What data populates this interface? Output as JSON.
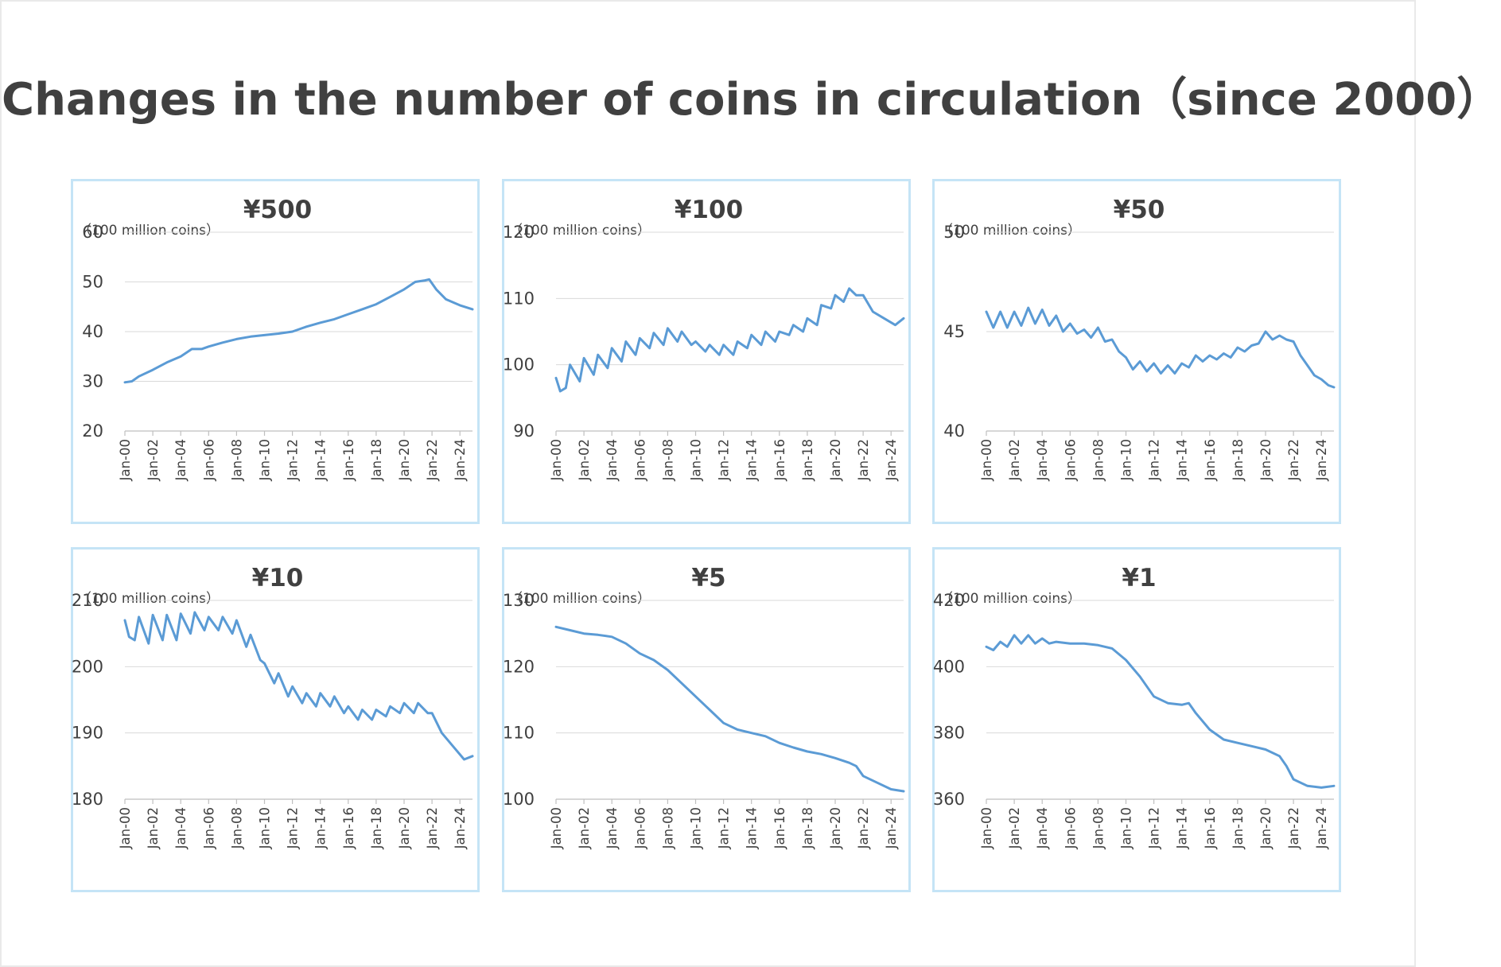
{
  "title": "Changes in the number of coins in circulation（since 2000）",
  "series_color": "#5b9bd5",
  "panel_border_color": "#c5e4f6",
  "chart_data": [
    {
      "type": "line",
      "title": "¥500",
      "ylabel": "（100 million coins）",
      "ylim": [
        20,
        60
      ],
      "yticks": [
        20,
        30,
        40,
        50,
        60
      ],
      "xlim": [
        2000,
        2024.9
      ],
      "xticks": [
        "Jan-00",
        "Jan-02",
        "Jan-04",
        "Jan-06",
        "Jan-08",
        "Jan-10",
        "Jan-12",
        "Jan-14",
        "Jan-16",
        "Jan-18",
        "Jan-20",
        "Jan-22",
        "Jan-24"
      ],
      "x": [
        2000,
        2000.5,
        2001,
        2002,
        2003,
        2004,
        2004.8,
        2005.5,
        2006,
        2007,
        2008,
        2009,
        2010,
        2011,
        2012,
        2013,
        2014,
        2015,
        2016,
        2017,
        2018,
        2019,
        2020,
        2020.8,
        2021.5,
        2021.8,
        2022.3,
        2023,
        2024,
        2024.9
      ],
      "y": [
        29.8,
        30.0,
        31.0,
        32.3,
        33.8,
        35.0,
        36.5,
        36.5,
        37.0,
        37.8,
        38.5,
        39.0,
        39.3,
        39.6,
        40.0,
        41.0,
        41.8,
        42.5,
        43.5,
        44.5,
        45.5,
        47.0,
        48.5,
        50.0,
        50.3,
        50.5,
        48.5,
        46.5,
        45.3,
        44.5
      ]
    },
    {
      "type": "line",
      "title": "¥100",
      "ylabel": "（100 million coins）",
      "ylim": [
        90,
        120
      ],
      "yticks": [
        90,
        100,
        110,
        120
      ],
      "xlim": [
        2000,
        2024.9
      ],
      "xticks": [
        "Jan-00",
        "Jan-02",
        "Jan-04",
        "Jan-06",
        "Jan-08",
        "Jan-10",
        "Jan-12",
        "Jan-14",
        "Jan-16",
        "Jan-18",
        "Jan-20",
        "Jan-22",
        "Jan-24"
      ],
      "x": [
        2000,
        2000.3,
        2000.7,
        2001,
        2001.7,
        2002,
        2002.7,
        2003,
        2003.7,
        2004,
        2004.7,
        2005,
        2005.7,
        2006,
        2006.7,
        2007,
        2007.7,
        2008,
        2008.7,
        2009,
        2009.7,
        2010,
        2010.7,
        2011,
        2011.7,
        2012,
        2012.7,
        2013,
        2013.7,
        2014,
        2014.7,
        2015,
        2015.7,
        2016,
        2016.7,
        2017,
        2017.7,
        2018,
        2018.7,
        2019,
        2019.7,
        2020,
        2020.6,
        2021,
        2021.5,
        2022,
        2022.7,
        2023.5,
        2024.3,
        2024.9
      ],
      "y": [
        98.0,
        96.0,
        96.5,
        100.0,
        97.5,
        101.0,
        98.5,
        101.5,
        99.5,
        102.5,
        100.5,
        103.5,
        101.5,
        104.0,
        102.5,
        104.8,
        103.0,
        105.5,
        103.5,
        105.0,
        103.0,
        103.5,
        102.0,
        103.0,
        101.5,
        103.0,
        101.5,
        103.5,
        102.5,
        104.5,
        103.0,
        105.0,
        103.5,
        105.0,
        104.5,
        106.0,
        105.0,
        107.0,
        106.0,
        109.0,
        108.5,
        110.5,
        109.5,
        111.5,
        110.5,
        110.5,
        108.0,
        107.0,
        106.0,
        107.0
      ]
    },
    {
      "type": "line",
      "title": "¥50",
      "ylabel": "（100 million coins）",
      "ylim": [
        40,
        50
      ],
      "yticks": [
        40,
        45,
        50
      ],
      "xlim": [
        2000,
        2024.9
      ],
      "xticks": [
        "Jan-00",
        "Jan-02",
        "Jan-04",
        "Jan-06",
        "Jan-08",
        "Jan-10",
        "Jan-12",
        "Jan-14",
        "Jan-16",
        "Jan-18",
        "Jan-20",
        "Jan-22",
        "Jan-24"
      ],
      "x": [
        2000,
        2000.5,
        2001,
        2001.5,
        2002,
        2002.5,
        2003,
        2003.5,
        2004,
        2004.5,
        2005,
        2005.5,
        2006,
        2006.5,
        2007,
        2007.5,
        2008,
        2008.5,
        2009,
        2009.5,
        2010,
        2010.5,
        2011,
        2011.5,
        2012,
        2012.5,
        2013,
        2013.5,
        2014,
        2014.5,
        2015,
        2015.5,
        2016,
        2016.5,
        2017,
        2017.5,
        2018,
        2018.5,
        2019,
        2019.5,
        2020,
        2020.5,
        2021,
        2021.5,
        2022,
        2022.5,
        2023,
        2023.5,
        2024,
        2024.5,
        2024.9
      ],
      "y": [
        46.0,
        45.2,
        46.0,
        45.2,
        46.0,
        45.3,
        46.2,
        45.4,
        46.1,
        45.3,
        45.8,
        45.0,
        45.4,
        44.9,
        45.1,
        44.7,
        45.2,
        44.5,
        44.6,
        44.0,
        43.7,
        43.1,
        43.5,
        43.0,
        43.4,
        42.9,
        43.3,
        42.9,
        43.4,
        43.2,
        43.8,
        43.5,
        43.8,
        43.6,
        43.9,
        43.7,
        44.2,
        44.0,
        44.3,
        44.4,
        45.0,
        44.6,
        44.8,
        44.6,
        44.5,
        43.8,
        43.3,
        42.8,
        42.6,
        42.3,
        42.2
      ]
    },
    {
      "type": "line",
      "title": "¥10",
      "ylabel": "（100 million coins）",
      "ylim": [
        180,
        210
      ],
      "yticks": [
        180,
        190,
        200,
        210
      ],
      "xlim": [
        2000,
        2024.9
      ],
      "xticks": [
        "Jan-00",
        "Jan-02",
        "Jan-04",
        "Jan-06",
        "Jan-08",
        "Jan-10",
        "Jan-12",
        "Jan-14",
        "Jan-16",
        "Jan-18",
        "Jan-20",
        "Jan-22",
        "Jan-24"
      ],
      "x": [
        2000,
        2000.3,
        2000.7,
        2001,
        2001.7,
        2002,
        2002.7,
        2003,
        2003.7,
        2004,
        2004.7,
        2005,
        2005.7,
        2006,
        2006.7,
        2007,
        2007.7,
        2008,
        2008.7,
        2009,
        2009.7,
        2010,
        2010.7,
        2011,
        2011.7,
        2012,
        2012.7,
        2013,
        2013.7,
        2014,
        2014.7,
        2015,
        2015.7,
        2016,
        2016.7,
        2017,
        2017.7,
        2018,
        2018.7,
        2019,
        2019.7,
        2020,
        2020.7,
        2021,
        2021.7,
        2022,
        2022.7,
        2023.5,
        2024.3,
        2024.9
      ],
      "y": [
        207.0,
        204.5,
        204.0,
        207.5,
        203.5,
        207.8,
        204.0,
        207.8,
        204.0,
        208.0,
        205.0,
        208.2,
        205.5,
        207.5,
        205.5,
        207.5,
        205.0,
        207.0,
        203.0,
        204.8,
        201.0,
        200.5,
        197.5,
        199.0,
        195.5,
        197.0,
        194.5,
        196.0,
        194.0,
        196.0,
        194.0,
        195.5,
        193.0,
        194.0,
        192.0,
        193.5,
        192.0,
        193.5,
        192.5,
        194.0,
        193.0,
        194.5,
        193.0,
        194.5,
        193.0,
        193.0,
        190.0,
        188.0,
        186.0,
        186.5
      ]
    },
    {
      "type": "line",
      "title": "¥5",
      "ylabel": "（100 million coins）",
      "ylim": [
        100,
        130
      ],
      "yticks": [
        100,
        110,
        120,
        130
      ],
      "xlim": [
        2000,
        2024.9
      ],
      "xticks": [
        "Jan-00",
        "Jan-02",
        "Jan-04",
        "Jan-06",
        "Jan-08",
        "Jan-10",
        "Jan-12",
        "Jan-14",
        "Jan-16",
        "Jan-18",
        "Jan-20",
        "Jan-22",
        "Jan-24"
      ],
      "x": [
        2000,
        2001,
        2002,
        2003,
        2004,
        2005,
        2006,
        2007,
        2008,
        2009,
        2010,
        2011,
        2012,
        2013,
        2014,
        2015,
        2016,
        2017,
        2018,
        2019,
        2020,
        2021,
        2021.5,
        2022,
        2023,
        2024,
        2024.9
      ],
      "y": [
        126.0,
        125.5,
        125.0,
        124.8,
        124.5,
        123.5,
        122.0,
        121.0,
        119.5,
        117.5,
        115.5,
        113.5,
        111.5,
        110.5,
        110.0,
        109.5,
        108.5,
        107.8,
        107.2,
        106.8,
        106.2,
        105.5,
        105.0,
        103.5,
        102.5,
        101.5,
        101.2
      ]
    },
    {
      "type": "line",
      "title": "¥1",
      "ylabel": "（100 million coins）",
      "ylim": [
        360,
        420
      ],
      "yticks": [
        360,
        380,
        400,
        420
      ],
      "xlim": [
        2000,
        2024.9
      ],
      "xticks": [
        "Jan-00",
        "Jan-02",
        "Jan-04",
        "Jan-06",
        "Jan-08",
        "Jan-10",
        "Jan-12",
        "Jan-14",
        "Jan-16",
        "Jan-18",
        "Jan-20",
        "Jan-22",
        "Jan-24"
      ],
      "x": [
        2000,
        2000.5,
        2001,
        2001.5,
        2002,
        2002.5,
        2003,
        2003.5,
        2004,
        2004.5,
        2005,
        2006,
        2007,
        2008,
        2009,
        2010,
        2011,
        2012,
        2013,
        2014,
        2014.5,
        2015,
        2016,
        2017,
        2018,
        2019,
        2020,
        2021,
        2021.5,
        2022,
        2023,
        2024,
        2024.9
      ],
      "y": [
        406.0,
        405.0,
        407.5,
        406.0,
        409.5,
        407.0,
        409.5,
        407.0,
        408.5,
        407.0,
        407.5,
        407.0,
        407.0,
        406.5,
        405.5,
        402.0,
        397.0,
        391.0,
        389.0,
        388.5,
        389.0,
        386.0,
        381.0,
        378.0,
        377.0,
        376.0,
        375.0,
        373.0,
        370.0,
        366.0,
        364.0,
        363.5,
        364.0
      ]
    }
  ]
}
